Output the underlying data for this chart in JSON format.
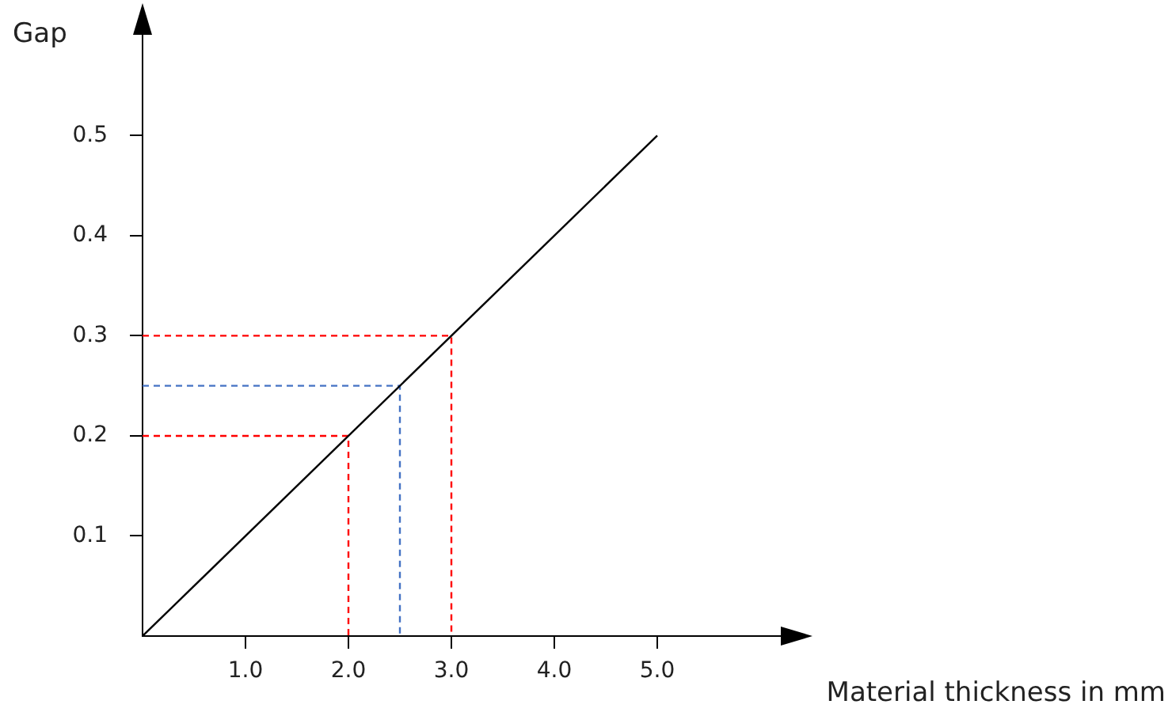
{
  "chart_data": {
    "type": "line",
    "ylabel": "Gap",
    "xlabel": "Material thickness in mm",
    "xlim": [
      0,
      6.2
    ],
    "ylim": [
      0,
      0.6
    ],
    "xticks": [
      {
        "value": 1,
        "label": "1.0"
      },
      {
        "value": 2,
        "label": "2.0"
      },
      {
        "value": 3,
        "label": "3.0"
      },
      {
        "value": 4,
        "label": "4.0"
      },
      {
        "value": 5,
        "label": "5.0"
      }
    ],
    "yticks": [
      0.1,
      0.2,
      0.3,
      0.4,
      0.5
    ],
    "grid": false,
    "legend": false,
    "marker": "none",
    "series": [
      {
        "color": "#000000",
        "x": [
          0,
          5
        ],
        "values": [
          0,
          0.5
        ],
        "line_style": "solid"
      },
      {
        "color": "#ff0000",
        "x": [
          0,
          2,
          2
        ],
        "values": [
          0.2,
          0.2,
          0
        ],
        "line_style": "dashed"
      },
      {
        "color": "#4472c4",
        "x": [
          0,
          2.5,
          2.5
        ],
        "values": [
          0.25,
          0.25,
          0
        ],
        "line_style": "dashed"
      },
      {
        "color": "#ff0000",
        "x": [
          0,
          3,
          3
        ],
        "values": [
          0.3,
          0.3,
          0
        ],
        "line_style": "dashed"
      }
    ]
  }
}
